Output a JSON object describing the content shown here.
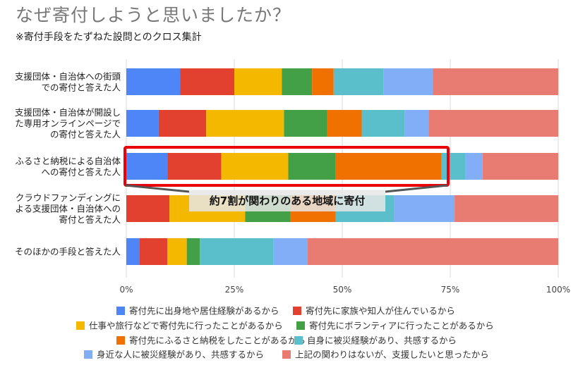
{
  "title": "なぜ寄付しようと思いましたか？",
  "subtitle": "※寄付手段をたずねた設問とのクロス集計",
  "callout": "約7割が関わりのある地域に寄付",
  "chart_data": {
    "type": "bar",
    "orientation": "horizontal",
    "stacked": true,
    "xlim": [
      0,
      100
    ],
    "x_tick_labels": [
      "0%",
      "25%",
      "50%",
      "75%",
      "100%"
    ],
    "categories": [
      [
        "支援団体・自治体への街頭",
        "での寄付と答えた人"
      ],
      [
        "支援団体・自治体が開設し",
        "た専用オンラインページで",
        "の寄付と答えた人"
      ],
      [
        "ふるさと納税による自治体",
        "への寄付と答えた人"
      ],
      [
        "クラウドファンディングに",
        "よる支援団体・自治体への",
        "寄付と答えた人"
      ],
      [
        "そのほかの手段と答えた人"
      ]
    ],
    "highlighted_category_index": 2,
    "highlight_color": "#e8000b",
    "series": [
      {
        "name": "寄付先に出身地や居住経験があるから",
        "color": "#4f86f7",
        "values": [
          12.5,
          7.5,
          9.5,
          0,
          3
        ]
      },
      {
        "name": "寄付先に家族や知人が住んでいるから",
        "color": "#e2412f",
        "values": [
          12.5,
          11,
          12.5,
          10,
          6.5
        ]
      },
      {
        "name": "仕事や旅行などで寄付先に行ったことがあるから",
        "color": "#f4b800",
        "values": [
          11,
          18,
          15.5,
          17.5,
          4.5
        ]
      },
      {
        "name": "寄付先にボランティアに行ったことがあるから",
        "color": "#43a047",
        "values": [
          7,
          10,
          11,
          10.5,
          3
        ]
      },
      {
        "name": "寄付先にふるさと納税をしたことがあるから",
        "color": "#f07000",
        "values": [
          5,
          8,
          24.5,
          10.5,
          0
        ]
      },
      {
        "name": "自身に被災経験があり、共感するから",
        "color": "#5bbfcb",
        "values": [
          11.5,
          10,
          5.5,
          13.5,
          17
        ]
      },
      {
        "name": "身近な人に被災経験があり、共感するから",
        "color": "#82aef8",
        "values": [
          11.5,
          5.5,
          4,
          14,
          8
        ]
      },
      {
        "name": "上記の関わりはないが、支援したいと思ったから",
        "color": "#e87c72",
        "values": [
          29,
          30,
          17.5,
          24,
          58
        ]
      }
    ]
  }
}
